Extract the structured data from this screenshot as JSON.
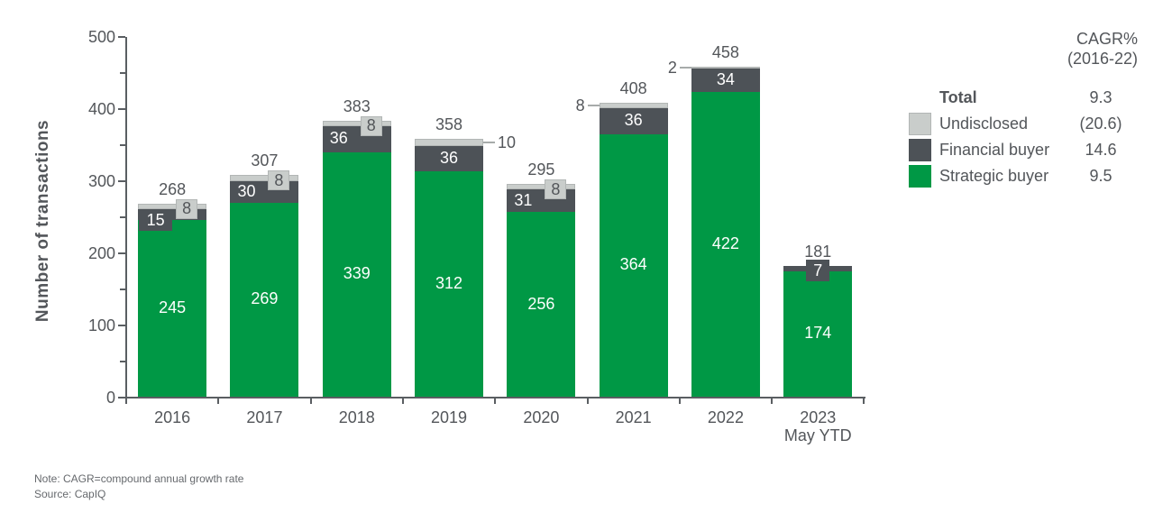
{
  "chart_data": {
    "type": "bar",
    "stacked": true,
    "title": "",
    "ylabel": "Number of transactions",
    "ylim": [
      0,
      500
    ],
    "ytick_interval": 100,
    "minor_tick_interval": 50,
    "grid": false,
    "legend_position": "right",
    "categories": [
      "2016",
      "2017",
      "2018",
      "2019",
      "2020",
      "2021",
      "2022",
      "2023"
    ],
    "category_sublabels": [
      "",
      "",
      "",
      "",
      "",
      "",
      "",
      "May YTD"
    ],
    "series": [
      {
        "name": "Strategic buyer",
        "color": "#009845",
        "values": [
          245,
          269,
          339,
          312,
          256,
          364,
          422,
          174
        ]
      },
      {
        "name": "Financial buyer",
        "color": "#4D5257",
        "values": [
          15,
          30,
          36,
          36,
          31,
          36,
          34,
          7
        ]
      },
      {
        "name": "Undisclosed",
        "color": "#C9CDCB",
        "values": [
          8,
          8,
          8,
          10,
          8,
          8,
          2,
          0
        ]
      }
    ],
    "totals": [
      268,
      307,
      383,
      358,
      295,
      408,
      458,
      181
    ],
    "label_layout": {
      "financial": [
        "patch-left",
        "inside-left",
        "inside-left",
        "inside-center",
        "inside-left",
        "inside-center",
        "inside-center",
        "patch-center"
      ],
      "undisclosed": [
        "box",
        "box",
        "box",
        "right",
        "box",
        "left",
        "left",
        "none"
      ]
    }
  },
  "legend": {
    "header": [
      "CAGR%",
      "(2016-22)"
    ],
    "rows": [
      {
        "label": "Total",
        "value": "9.3",
        "swatch": null,
        "bold": true
      },
      {
        "label": "Undisclosed",
        "value": "(20.6)",
        "swatch": "#C9CDCB",
        "bold": false
      },
      {
        "label": "Financial buyer",
        "value": "14.6",
        "swatch": "#4D5257",
        "bold": false
      },
      {
        "label": "Strategic buyer",
        "value": "9.5",
        "swatch": "#009845",
        "bold": false
      }
    ]
  },
  "notes": {
    "line1": "Note: CAGR=compound annual growth rate",
    "line2": "Source: CapIQ"
  }
}
